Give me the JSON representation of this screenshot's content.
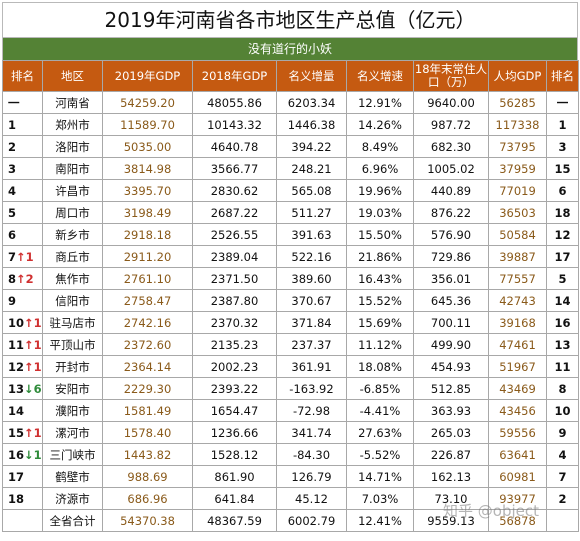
{
  "title": "2019年河南省各市地区生产总值（亿元）",
  "subtitle": "没有道行的小妖",
  "headers": [
    "排名",
    "地区",
    "2019年GDP",
    "2018年GDP",
    "名义增量",
    "名义增速",
    "18年末常住人口（万）",
    "人均GDP",
    "排名"
  ],
  "rows": [
    {
      "rank": "一",
      "change": "",
      "dir": "",
      "city": "河南省",
      "gdp2019": "54259.20",
      "gdp2018": "48055.86",
      "increase": "6203.34",
      "growth": "12.91%",
      "pop": "9640.00",
      "percap": "56285",
      "rank2": "一"
    },
    {
      "rank": "1",
      "change": "",
      "dir": "",
      "city": "郑州市",
      "gdp2019": "11589.70",
      "gdp2018": "10143.32",
      "increase": "1446.38",
      "growth": "14.26%",
      "pop": "987.72",
      "percap": "117338",
      "rank2": "1"
    },
    {
      "rank": "2",
      "change": "",
      "dir": "",
      "city": "洛阳市",
      "gdp2019": "5035.00",
      "gdp2018": "4640.78",
      "increase": "394.22",
      "growth": "8.49%",
      "pop": "682.30",
      "percap": "73795",
      "rank2": "3"
    },
    {
      "rank": "3",
      "change": "",
      "dir": "",
      "city": "南阳市",
      "gdp2019": "3814.98",
      "gdp2018": "3566.77",
      "increase": "248.21",
      "growth": "6.96%",
      "pop": "1005.02",
      "percap": "37959",
      "rank2": "15"
    },
    {
      "rank": "4",
      "change": "",
      "dir": "",
      "city": "许昌市",
      "gdp2019": "3395.70",
      "gdp2018": "2830.62",
      "increase": "565.08",
      "growth": "19.96%",
      "pop": "440.89",
      "percap": "77019",
      "rank2": "6"
    },
    {
      "rank": "5",
      "change": "",
      "dir": "",
      "city": "周口市",
      "gdp2019": "3198.49",
      "gdp2018": "2687.22",
      "increase": "511.27",
      "growth": "19.03%",
      "pop": "876.22",
      "percap": "36503",
      "rank2": "18"
    },
    {
      "rank": "6",
      "change": "",
      "dir": "",
      "city": "新乡市",
      "gdp2019": "2918.18",
      "gdp2018": "2526.55",
      "increase": "391.63",
      "growth": "15.50%",
      "pop": "576.90",
      "percap": "50584",
      "rank2": "12"
    },
    {
      "rank": "7",
      "change": "↑1",
      "dir": "up",
      "city": "商丘市",
      "gdp2019": "2911.20",
      "gdp2018": "2389.04",
      "increase": "522.16",
      "growth": "21.86%",
      "pop": "729.86",
      "percap": "39887",
      "rank2": "17"
    },
    {
      "rank": "8",
      "change": "↑2",
      "dir": "up",
      "city": "焦作市",
      "gdp2019": "2761.10",
      "gdp2018": "2371.50",
      "increase": "389.60",
      "growth": "16.43%",
      "pop": "356.01",
      "percap": "77557",
      "rank2": "5"
    },
    {
      "rank": "9",
      "change": "",
      "dir": "",
      "city": "信阳市",
      "gdp2019": "2758.47",
      "gdp2018": "2387.80",
      "increase": "370.67",
      "growth": "15.52%",
      "pop": "645.36",
      "percap": "42743",
      "rank2": "14"
    },
    {
      "rank": "10",
      "change": "↑1",
      "dir": "up",
      "city": "驻马店市",
      "gdp2019": "2742.16",
      "gdp2018": "2370.32",
      "increase": "371.84",
      "growth": "15.69%",
      "pop": "700.11",
      "percap": "39168",
      "rank2": "16"
    },
    {
      "rank": "11",
      "change": "↑1",
      "dir": "up",
      "city": "平顶山市",
      "gdp2019": "2372.60",
      "gdp2018": "2135.23",
      "increase": "237.37",
      "growth": "11.12%",
      "pop": "499.90",
      "percap": "47461",
      "rank2": "13"
    },
    {
      "rank": "12",
      "change": "↑1",
      "dir": "up",
      "city": "开封市",
      "gdp2019": "2364.14",
      "gdp2018": "2002.23",
      "increase": "361.91",
      "growth": "18.08%",
      "pop": "454.93",
      "percap": "51967",
      "rank2": "11"
    },
    {
      "rank": "13",
      "change": "↓6",
      "dir": "down",
      "city": "安阳市",
      "gdp2019": "2229.30",
      "gdp2018": "2393.22",
      "increase": "-163.92",
      "growth": "-6.85%",
      "pop": "512.85",
      "percap": "43469",
      "rank2": "8"
    },
    {
      "rank": "14",
      "change": "",
      "dir": "",
      "city": "濮阳市",
      "gdp2019": "1581.49",
      "gdp2018": "1654.47",
      "increase": "-72.98",
      "growth": "-4.41%",
      "pop": "363.93",
      "percap": "43456",
      "rank2": "10"
    },
    {
      "rank": "15",
      "change": "↑1",
      "dir": "up",
      "city": "漯河市",
      "gdp2019": "1578.40",
      "gdp2018": "1236.66",
      "increase": "341.74",
      "growth": "27.63%",
      "pop": "265.03",
      "percap": "59556",
      "rank2": "9"
    },
    {
      "rank": "16",
      "change": "↓1",
      "dir": "down",
      "city": "三门峡市",
      "gdp2019": "1443.82",
      "gdp2018": "1528.12",
      "increase": "-84.30",
      "growth": "-5.52%",
      "pop": "226.87",
      "percap": "63641",
      "rank2": "4"
    },
    {
      "rank": "17",
      "change": "",
      "dir": "",
      "city": "鹤壁市",
      "gdp2019": "988.69",
      "gdp2018": "861.90",
      "increase": "126.79",
      "growth": "14.71%",
      "pop": "162.13",
      "percap": "60981",
      "rank2": "7"
    },
    {
      "rank": "18",
      "change": "",
      "dir": "",
      "city": "济源市",
      "gdp2019": "686.96",
      "gdp2018": "641.84",
      "increase": "45.12",
      "growth": "7.03%",
      "pop": "73.10",
      "percap": "93977",
      "rank2": "2"
    },
    {
      "rank": "",
      "change": "",
      "dir": "",
      "city": "全省合计",
      "gdp2019": "54370.38",
      "gdp2018": "48367.59",
      "increase": "6002.79",
      "growth": "12.41%",
      "pop": "9559.13",
      "percap": "56878",
      "rank2": ""
    }
  ],
  "watermark": "知乎 @object",
  "colors": {
    "header_bg": "#c55a11",
    "subtitle_bg": "#548235",
    "up": "#d03030",
    "down": "#2e8b3a"
  }
}
